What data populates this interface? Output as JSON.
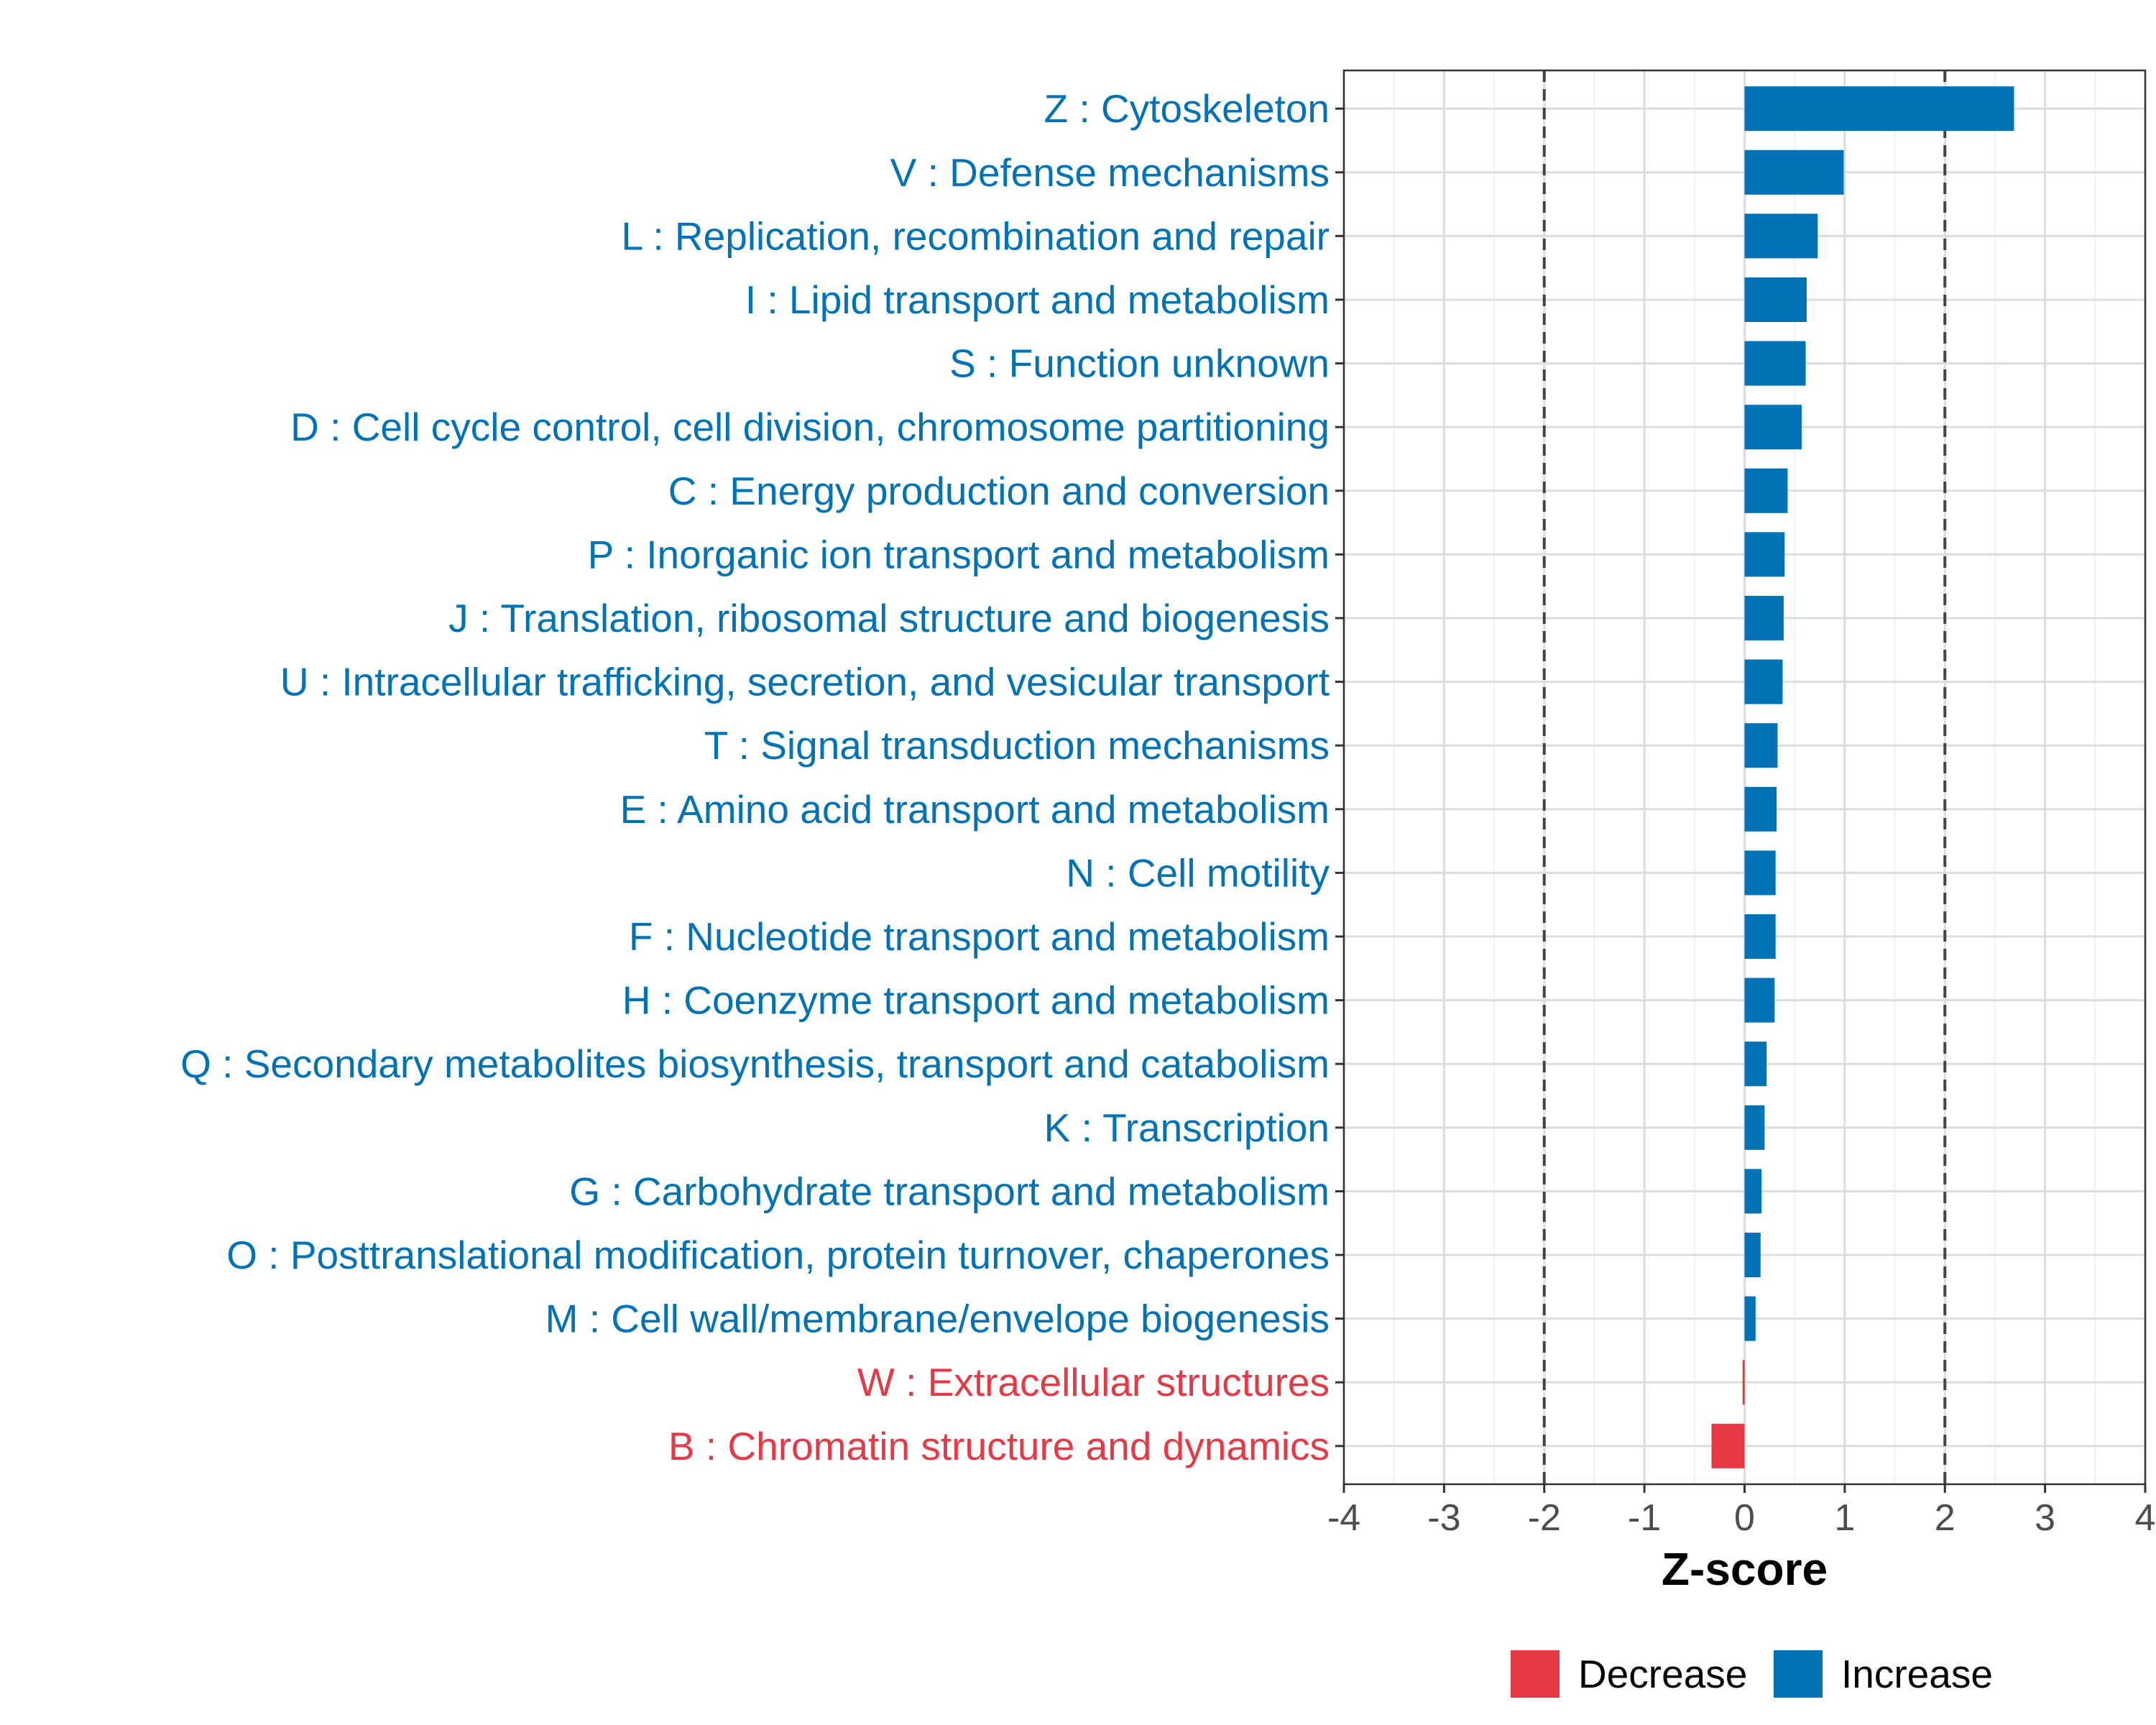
{
  "chart_data": {
    "type": "bar",
    "orientation": "horizontal",
    "title": "",
    "xlabel": "Z-score",
    "ylabel": "",
    "xlim": [
      -4,
      4
    ],
    "x_ticks": [
      "-4",
      "-3",
      "-2",
      "-1",
      "0",
      "1",
      "2",
      "3",
      "4"
    ],
    "reference_lines": [
      -2,
      2
    ],
    "grid": true,
    "legend_position": "bottom",
    "colors": {
      "Increase": "#0072b5",
      "Decrease": "#e63946"
    },
    "categories": [
      "Z : Cytoskeleton",
      "V : Defense mechanisms",
      "L : Replication, recombination and repair",
      "I : Lipid transport and metabolism",
      "S : Function unknown",
      "D : Cell cycle control, cell division, chromosome partitioning",
      "C : Energy production and conversion",
      "P : Inorganic ion transport and metabolism",
      "J : Translation, ribosomal structure and biogenesis",
      "U : Intracellular trafficking, secretion, and vesicular transport",
      "T : Signal transduction mechanisms",
      "E : Amino acid transport and metabolism",
      "N : Cell motility",
      "F : Nucleotide transport and metabolism",
      "H : Coenzyme transport and metabolism",
      "Q : Secondary metabolites biosynthesis, transport and catabolism",
      "K : Transcription",
      "G : Carbohydrate transport and metabolism",
      "O : Posttranslational modification, protein turnover, chaperones",
      "M : Cell wall/membrane/envelope biogenesis",
      "W : Extracellular structures",
      "B : Chromatin structure and dynamics"
    ],
    "values": [
      2.69,
      0.99,
      0.73,
      0.62,
      0.61,
      0.57,
      0.43,
      0.4,
      0.39,
      0.38,
      0.33,
      0.32,
      0.31,
      0.31,
      0.3,
      0.22,
      0.2,
      0.17,
      0.16,
      0.11,
      -0.02,
      -0.33
    ],
    "groups": [
      "Increase",
      "Increase",
      "Increase",
      "Increase",
      "Increase",
      "Increase",
      "Increase",
      "Increase",
      "Increase",
      "Increase",
      "Increase",
      "Increase",
      "Increase",
      "Increase",
      "Increase",
      "Increase",
      "Increase",
      "Increase",
      "Increase",
      "Increase",
      "Decrease",
      "Decrease"
    ],
    "legend": [
      "Decrease",
      "Increase"
    ]
  }
}
